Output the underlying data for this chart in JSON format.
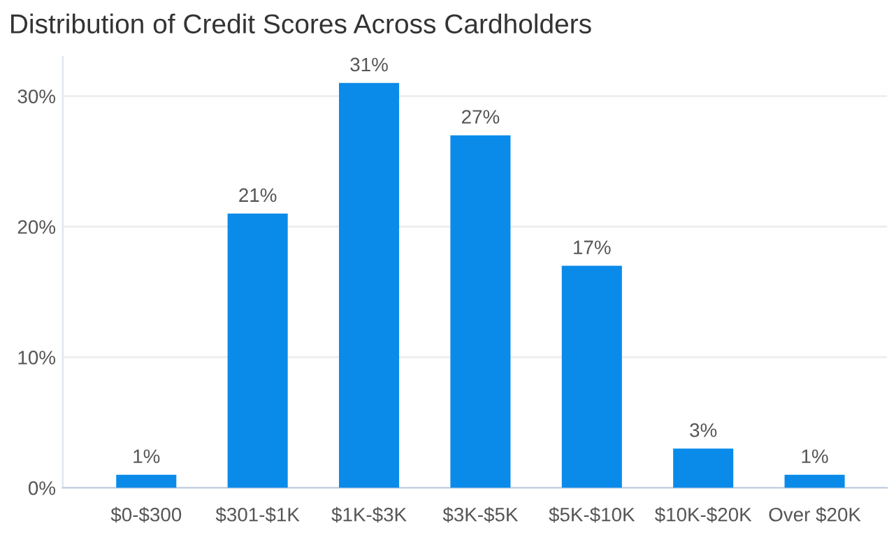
{
  "chart_data": {
    "type": "bar",
    "title": "Distribution of Credit Scores Across Cardholders",
    "categories": [
      "$0-$300",
      "$301-$1K",
      "$1K-$3K",
      "$3K-$5K",
      "$5K-$10K",
      "$10K-$20K",
      "Over $20K"
    ],
    "values": [
      1,
      21,
      31,
      27,
      17,
      3,
      1
    ],
    "value_labels": [
      "1%",
      "21%",
      "31%",
      "27%",
      "17%",
      "3%",
      "1%"
    ],
    "color": "#0a8bea",
    "ylim": [
      0,
      33
    ],
    "yticks": [
      {
        "value": 0,
        "label": "0%"
      },
      {
        "value": 10,
        "label": "10%"
      },
      {
        "value": 20,
        "label": "20%"
      },
      {
        "value": 30,
        "label": "30%"
      }
    ],
    "grid": "y"
  }
}
